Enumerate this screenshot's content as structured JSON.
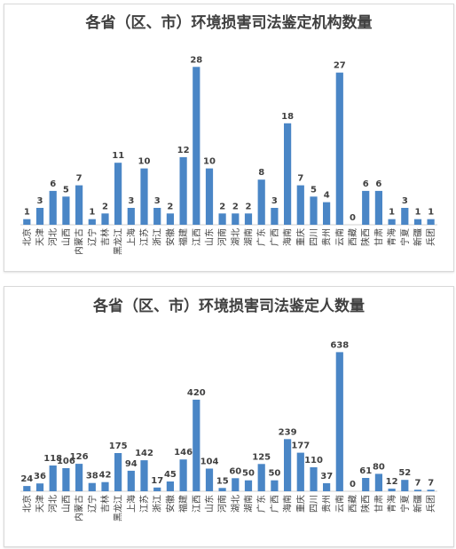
{
  "chart_data": [
    {
      "type": "bar",
      "title": "各省（区、市）环境损害司法鉴定机构数量",
      "categories": [
        "北京",
        "天津",
        "河北",
        "山西",
        "内蒙古",
        "辽宁",
        "吉林",
        "黑龙江",
        "上海",
        "江苏",
        "浙江",
        "安徽",
        "福建",
        "江西",
        "山东",
        "河南",
        "湖北",
        "湖南",
        "广东",
        "广西",
        "海南",
        "重庆",
        "四川",
        "贵州",
        "云南",
        "西藏",
        "陕西",
        "甘肃",
        "青海",
        "宁夏",
        "新疆",
        "兵团"
      ],
      "values": [
        1,
        3,
        6,
        5,
        7,
        1,
        2,
        11,
        3,
        10,
        3,
        2,
        12,
        28,
        10,
        2,
        2,
        2,
        8,
        3,
        18,
        7,
        5,
        4,
        27,
        0,
        6,
        6,
        1,
        3,
        1,
        1
      ],
      "ylim": [
        0,
        29
      ],
      "bar_color": "#4a86c6",
      "grid": false
    },
    {
      "type": "bar",
      "title": "各省（区、市）环境损害司法鉴定人数量",
      "categories": [
        "北京",
        "天津",
        "河北",
        "山西",
        "内蒙古",
        "辽宁",
        "吉林",
        "黑龙江",
        "上海",
        "江苏",
        "浙江",
        "安徽",
        "福建",
        "江西",
        "山东",
        "河南",
        "湖北",
        "湖南",
        "广东",
        "广西",
        "海南",
        "重庆",
        "四川",
        "贵州",
        "云南",
        "西藏",
        "陕西",
        "甘肃",
        "青海",
        "宁夏",
        "新疆",
        "兵团"
      ],
      "values": [
        24,
        36,
        118,
        106,
        126,
        38,
        42,
        175,
        94,
        142,
        17,
        45,
        146,
        420,
        104,
        15,
        60,
        50,
        125,
        50,
        239,
        177,
        110,
        37,
        638,
        0,
        61,
        80,
        12,
        52,
        7,
        7
      ],
      "ylim": [
        0,
        660
      ],
      "bar_color": "#4a86c6",
      "grid": false
    }
  ]
}
